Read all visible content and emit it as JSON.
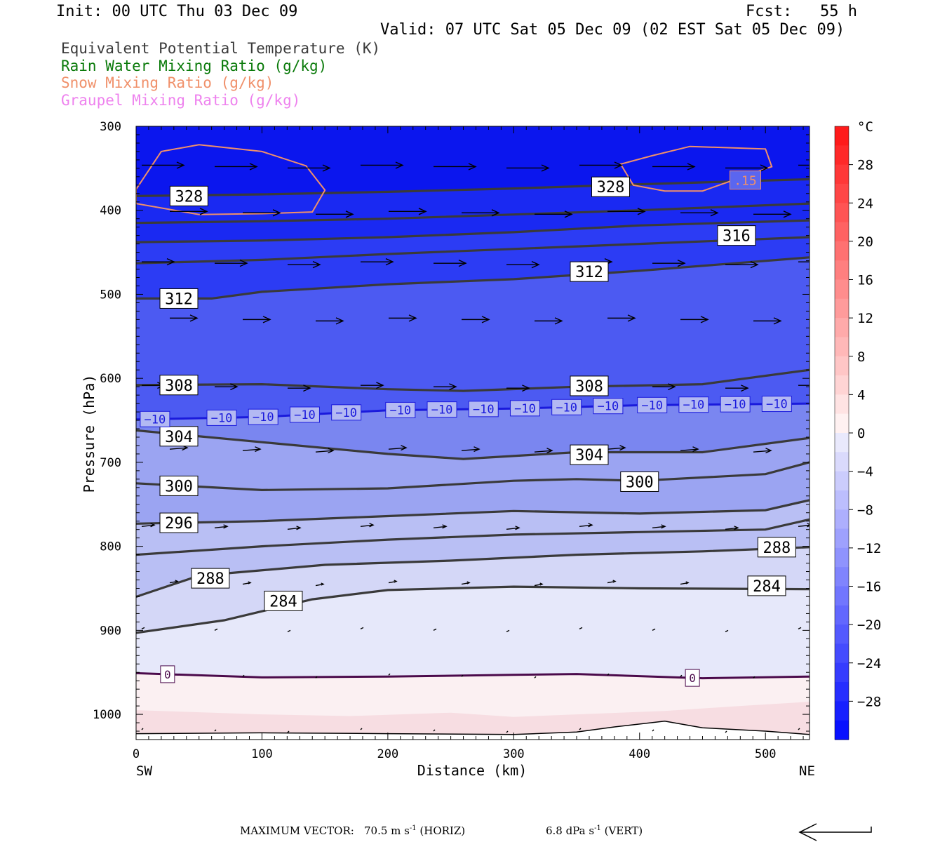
{
  "header": {
    "init": "Init: 00 UTC Thu 03 Dec 09",
    "fcst": "Fcst:   55 h",
    "valid": "Valid: 07 UTC Sat 05 Dec 09 (02 EST Sat 05 Dec 09)"
  },
  "legend": [
    {
      "label": "Equivalent Potential Temperature (K)",
      "color": "#3a3a3a"
    },
    {
      "label": "Rain Water Mixing Ratio (g/kg)",
      "color": "#0a7a0a"
    },
    {
      "label": "Snow Mixing Ratio (g/kg)",
      "color": "#f0906a"
    },
    {
      "label": "Graupel Mixing Ratio (g/kg)",
      "color": "#ee82ee"
    }
  ],
  "footer": {
    "max_vector_label": "MAXIMUM VECTOR:",
    "horiz_value": "70.5 m s",
    "horiz_exp": "-1",
    "horiz_tag": "(HORIZ)",
    "vert_value": "6.8 dPa s",
    "vert_exp": "-1",
    "vert_tag": "(VERT)"
  },
  "chart_data": {
    "type": "cross-section",
    "xlabel": "Distance (km)",
    "ylabel": "Pressure (hPa)",
    "xlim": [
      0,
      535
    ],
    "ylim": [
      1030,
      300
    ],
    "x_ticks": [
      0,
      100,
      200,
      300,
      400,
      500
    ],
    "y_ticks": [
      300,
      400,
      500,
      600,
      700,
      800,
      900,
      1000
    ],
    "x_end_labels": {
      "left": "SW",
      "right": "NE"
    },
    "colorbar": {
      "unit": "°C",
      "ticks": [
        28,
        24,
        20,
        16,
        12,
        8,
        4,
        0,
        -4,
        -8,
        -12,
        -16,
        -20,
        -24,
        -28
      ],
      "tick_labels": [
        "28",
        "24",
        "20",
        "16",
        "12",
        "8",
        "4",
        "0",
        "−4",
        "−8",
        "−12",
        "−16",
        "−20",
        "−24",
        "−28"
      ],
      "range": [
        -32,
        32
      ]
    },
    "theta_e_contours": [
      {
        "value": 328,
        "points": [
          [
            0,
            383
          ],
          [
            100,
            381
          ],
          [
            200,
            378
          ],
          [
            300,
            374
          ],
          [
            400,
            369
          ],
          [
            535,
            363
          ]
        ]
      },
      {
        "value": 324,
        "points": [
          [
            0,
            415
          ],
          [
            100,
            413
          ],
          [
            200,
            410
          ],
          [
            300,
            405
          ],
          [
            400,
            400
          ],
          [
            535,
            392
          ]
        ]
      },
      {
        "value": 320,
        "points": [
          [
            0,
            438
          ],
          [
            100,
            436
          ],
          [
            200,
            432
          ],
          [
            300,
            426
          ],
          [
            400,
            418
          ],
          [
            535,
            412
          ]
        ]
      },
      {
        "value": 316,
        "points": [
          [
            0,
            463
          ],
          [
            100,
            459
          ],
          [
            200,
            452
          ],
          [
            300,
            446
          ],
          [
            400,
            440
          ],
          [
            535,
            432
          ]
        ]
      },
      {
        "value": 312,
        "points": [
          [
            0,
            505
          ],
          [
            60,
            505
          ],
          [
            100,
            497
          ],
          [
            200,
            488
          ],
          [
            300,
            482
          ],
          [
            400,
            472
          ],
          [
            535,
            456
          ]
        ]
      },
      {
        "value": 308,
        "points": [
          [
            0,
            608
          ],
          [
            100,
            607
          ],
          [
            200,
            613
          ],
          [
            260,
            615
          ],
          [
            350,
            610
          ],
          [
            450,
            607
          ],
          [
            535,
            590
          ]
        ]
      },
      {
        "value": 304,
        "points": [
          [
            0,
            662
          ],
          [
            100,
            676
          ],
          [
            200,
            690
          ],
          [
            260,
            696
          ],
          [
            350,
            688
          ],
          [
            450,
            688
          ],
          [
            535,
            671
          ]
        ]
      },
      {
        "value": 300,
        "points": [
          [
            0,
            725
          ],
          [
            100,
            733
          ],
          [
            200,
            731
          ],
          [
            300,
            722
          ],
          [
            350,
            720
          ],
          [
            400,
            722
          ],
          [
            500,
            714
          ],
          [
            535,
            700
          ]
        ]
      },
      {
        "value": 296,
        "points": [
          [
            0,
            773
          ],
          [
            100,
            770
          ],
          [
            200,
            764
          ],
          [
            300,
            758
          ],
          [
            400,
            761
          ],
          [
            500,
            757
          ],
          [
            535,
            745
          ]
        ]
      },
      {
        "value": 292,
        "points": [
          [
            0,
            810
          ],
          [
            100,
            800
          ],
          [
            200,
            792
          ],
          [
            300,
            786
          ],
          [
            400,
            783
          ],
          [
            500,
            780
          ],
          [
            535,
            768
          ]
        ]
      },
      {
        "value": 288,
        "points": [
          [
            0,
            860
          ],
          [
            50,
            835
          ],
          [
            150,
            822
          ],
          [
            250,
            817
          ],
          [
            350,
            810
          ],
          [
            450,
            806
          ],
          [
            535,
            801
          ]
        ]
      },
      {
        "value": 284,
        "points": [
          [
            0,
            903
          ],
          [
            70,
            888
          ],
          [
            140,
            863
          ],
          [
            200,
            852
          ],
          [
            300,
            848
          ],
          [
            400,
            850
          ],
          [
            535,
            851
          ]
        ]
      }
    ],
    "theta_e_labels": [
      {
        "value": "328",
        "x": 42,
        "p": 383
      },
      {
        "value": "328",
        "x": 377,
        "p": 372
      },
      {
        "value": "316",
        "x": 477,
        "p": 430
      },
      {
        "value": "312",
        "x": 360,
        "p": 473
      },
      {
        "value": "312",
        "x": 34,
        "p": 505
      },
      {
        "value": "308",
        "x": 34,
        "p": 608
      },
      {
        "value": "308",
        "x": 360,
        "p": 609
      },
      {
        "value": "304",
        "x": 34,
        "p": 669
      },
      {
        "value": "304",
        "x": 360,
        "p": 691
      },
      {
        "value": "300",
        "x": 34,
        "p": 728
      },
      {
        "value": "300",
        "x": 400,
        "p": 723
      },
      {
        "value": "296",
        "x": 34,
        "p": 772
      },
      {
        "value": "288",
        "x": 59,
        "p": 838
      },
      {
        "value": "288",
        "x": 509,
        "p": 801
      },
      {
        "value": "284",
        "x": 117,
        "p": 865
      },
      {
        "value": "284",
        "x": 501,
        "p": 847
      }
    ],
    "temperature_isotherms": [
      {
        "value": -10,
        "color": "#1a1adc",
        "points": [
          [
            0,
            649
          ],
          [
            100,
            646
          ],
          [
            200,
            638
          ],
          [
            300,
            636
          ],
          [
            400,
            632
          ],
          [
            535,
            630
          ]
        ]
      },
      {
        "value": 0,
        "color": "#4b0a4b",
        "points": [
          [
            0,
            951
          ],
          [
            100,
            956
          ],
          [
            200,
            955
          ],
          [
            300,
            953
          ],
          [
            350,
            952
          ],
          [
            450,
            957
          ],
          [
            535,
            955
          ]
        ]
      }
    ],
    "isotherm_labels": [
      {
        "value": "−10",
        "x": [
          15,
          68,
          101,
          134,
          167,
          210,
          243,
          276,
          309,
          342,
          375,
          410,
          443,
          476,
          509
        ]
      },
      {
        "value": "0",
        "x": [
          25,
          442
        ]
      }
    ],
    "terrain": {
      "points": [
        [
          0,
          1023
        ],
        [
          100,
          1022
        ],
        [
          200,
          1023
        ],
        [
          300,
          1024
        ],
        [
          350,
          1021
        ],
        [
          380,
          1015
        ],
        [
          420,
          1008
        ],
        [
          450,
          1016
        ],
        [
          500,
          1020
        ],
        [
          535,
          1024
        ]
      ]
    },
    "snow_mixing_ratio": [
      {
        "value": ".15",
        "points": [
          [
            0,
            375
          ],
          [
            20,
            330
          ],
          [
            50,
            322
          ],
          [
            100,
            330
          ],
          [
            135,
            347
          ],
          [
            150,
            376
          ],
          [
            140,
            402
          ],
          [
            100,
            404
          ],
          [
            50,
            405
          ],
          [
            0,
            392
          ]
        ]
      },
      {
        "value": ".15",
        "points": [
          [
            385,
            345
          ],
          [
            410,
            335
          ],
          [
            440,
            324
          ],
          [
            500,
            327
          ],
          [
            505,
            348
          ],
          [
            450,
            377
          ],
          [
            420,
            377
          ],
          [
            395,
            370
          ]
        ]
      }
    ],
    "snow_label": {
      "value": ".15",
      "x": 484,
      "p": 364
    },
    "wind_vector_rows_hpa": [
      348,
      403,
      463,
      530,
      610,
      686,
      778,
      845,
      900,
      955,
      1020
    ]
  }
}
